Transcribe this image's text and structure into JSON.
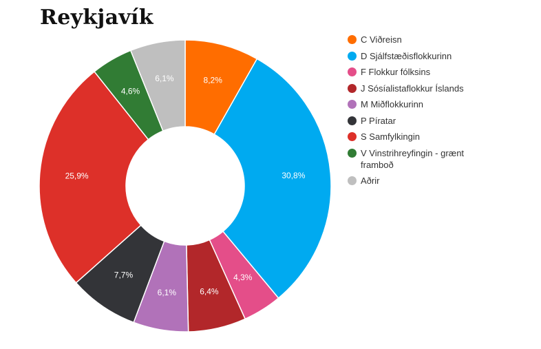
{
  "chart_data": {
    "type": "pie",
    "variant": "donut",
    "title": "Reykjavík",
    "legend_position": "right",
    "categories": [
      "C Viðreisn",
      "D Sjálfstæðisflokkurinn",
      "F Flokkur fólksins",
      "J Sósíalistaflokkur Íslands",
      "M Miðflokkurinn",
      "P Píratar",
      "S Samfylkingin",
      "V Vinstrihreyfingin - grænt framboð",
      "Aðrir"
    ],
    "values": [
      8.2,
      30.8,
      4.3,
      6.4,
      6.1,
      7.7,
      25.9,
      4.6,
      6.1
    ],
    "value_labels": [
      "8,2%",
      "30,8%",
      "4,3%",
      "6,4%",
      "6,1%",
      "7,7%",
      "25,9%",
      "4,6%",
      "6,1%"
    ],
    "colors": [
      "#ff6d00",
      "#00aaf0",
      "#e44e89",
      "#b2272a",
      "#b172b9",
      "#333438",
      "#dd3029",
      "#317c34",
      "#bfbfbf"
    ]
  }
}
